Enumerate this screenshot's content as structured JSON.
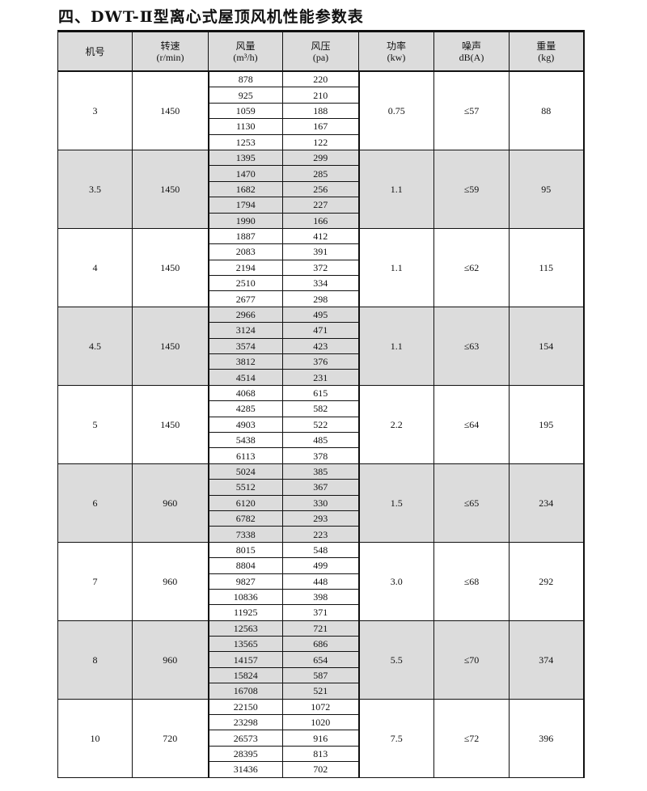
{
  "title": "四、DWT-Ⅱ型离心式屋顶风机性能参数表",
  "headers": [
    {
      "line1": "机号",
      "line2": ""
    },
    {
      "line1": "转速",
      "line2": "(r/min)"
    },
    {
      "line1": "风量",
      "line2": "(m³/h)"
    },
    {
      "line1": "风压",
      "line2": "(pa)"
    },
    {
      "line1": "功率",
      "line2": "(kw)"
    },
    {
      "line1": "噪声",
      "line2": "dB(A)"
    },
    {
      "line1": "重量",
      "line2": "(kg)"
    }
  ],
  "shade_color": "#dcdcdc",
  "groups": [
    {
      "model": "3",
      "speed": "1450",
      "power": "0.75",
      "noise": "≤57",
      "weight": "88",
      "shaded": false,
      "rows": [
        [
          "878",
          "220"
        ],
        [
          "925",
          "210"
        ],
        [
          "1059",
          "188"
        ],
        [
          "1130",
          "167"
        ],
        [
          "1253",
          "122"
        ]
      ]
    },
    {
      "model": "3.5",
      "speed": "1450",
      "power": "1.1",
      "noise": "≤59",
      "weight": "95",
      "shaded": true,
      "rows": [
        [
          "1395",
          "299"
        ],
        [
          "1470",
          "285"
        ],
        [
          "1682",
          "256"
        ],
        [
          "1794",
          "227"
        ],
        [
          "1990",
          "166"
        ]
      ]
    },
    {
      "model": "4",
      "speed": "1450",
      "power": "1.1",
      "noise": "≤62",
      "weight": "115",
      "shaded": false,
      "rows": [
        [
          "1887",
          "412"
        ],
        [
          "2083",
          "391"
        ],
        [
          "2194",
          "372"
        ],
        [
          "2510",
          "334"
        ],
        [
          "2677",
          "298"
        ]
      ]
    },
    {
      "model": "4.5",
      "speed": "1450",
      "power": "1.1",
      "noise": "≤63",
      "weight": "154",
      "shaded": true,
      "rows": [
        [
          "2966",
          "495"
        ],
        [
          "3124",
          "471"
        ],
        [
          "3574",
          "423"
        ],
        [
          "3812",
          "376"
        ],
        [
          "4514",
          "231"
        ]
      ]
    },
    {
      "model": "5",
      "speed": "1450",
      "power": "2.2",
      "noise": "≤64",
      "weight": "195",
      "shaded": false,
      "rows": [
        [
          "4068",
          "615"
        ],
        [
          "4285",
          "582"
        ],
        [
          "4903",
          "522"
        ],
        [
          "5438",
          "485"
        ],
        [
          "6113",
          "378"
        ]
      ]
    },
    {
      "model": "6",
      "speed": "960",
      "power": "1.5",
      "noise": "≤65",
      "weight": "234",
      "shaded": true,
      "rows": [
        [
          "5024",
          "385"
        ],
        [
          "5512",
          "367"
        ],
        [
          "6120",
          "330"
        ],
        [
          "6782",
          "293"
        ],
        [
          "7338",
          "223"
        ]
      ]
    },
    {
      "model": "7",
      "speed": "960",
      "power": "3.0",
      "noise": "≤68",
      "weight": "292",
      "shaded": false,
      "rows": [
        [
          "8015",
          "548"
        ],
        [
          "8804",
          "499"
        ],
        [
          "9827",
          "448"
        ],
        [
          "10836",
          "398"
        ],
        [
          "11925",
          "371"
        ]
      ]
    },
    {
      "model": "8",
      "speed": "960",
      "power": "5.5",
      "noise": "≤70",
      "weight": "374",
      "shaded": true,
      "rows": [
        [
          "12563",
          "721"
        ],
        [
          "13565",
          "686"
        ],
        [
          "14157",
          "654"
        ],
        [
          "15824",
          "587"
        ],
        [
          "16708",
          "521"
        ]
      ]
    },
    {
      "model": "10",
      "speed": "720",
      "power": "7.5",
      "noise": "≤72",
      "weight": "396",
      "shaded": false,
      "rows": [
        [
          "22150",
          "1072"
        ],
        [
          "23298",
          "1020"
        ],
        [
          "26573",
          "916"
        ],
        [
          "28395",
          "813"
        ],
        [
          "31436",
          "702"
        ]
      ]
    }
  ]
}
